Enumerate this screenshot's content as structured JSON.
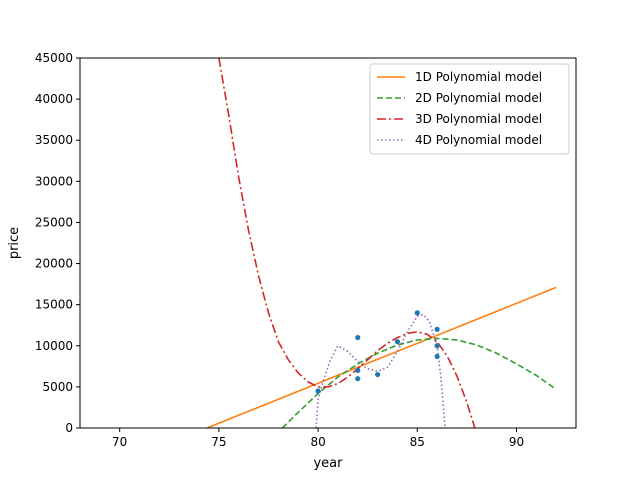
{
  "chart_data": {
    "type": "line",
    "title": "",
    "xlabel": "year",
    "ylabel": "price",
    "xlim": [
      68,
      93
    ],
    "ylim": [
      0,
      45000
    ],
    "x_ticks": [
      70,
      75,
      80,
      85,
      90
    ],
    "y_ticks": [
      0,
      5000,
      10000,
      15000,
      20000,
      25000,
      30000,
      35000,
      40000,
      45000
    ],
    "grid": false,
    "legend_position": "top-right",
    "scatter": {
      "color": "#1f77b4",
      "points": [
        [
          80,
          4500
        ],
        [
          82,
          11000
        ],
        [
          82,
          7000
        ],
        [
          82,
          6000
        ],
        [
          83,
          6500
        ],
        [
          84,
          10500
        ],
        [
          85,
          14000
        ],
        [
          86,
          12000
        ],
        [
          86,
          10000
        ],
        [
          86,
          8700
        ]
      ]
    },
    "series": [
      {
        "name": "1D Polynomial model",
        "color": "#ff7f0e",
        "dash": "solid",
        "points": [
          [
            74.4,
            0
          ],
          [
            92,
            17100
          ]
        ]
      },
      {
        "name": "2D Polynomial model",
        "color": "#2ca02c",
        "dash": "dashed",
        "points": [
          [
            78.2,
            0
          ],
          [
            79,
            1900
          ],
          [
            80,
            4200
          ],
          [
            81,
            6200
          ],
          [
            82,
            7800
          ],
          [
            83,
            9100
          ],
          [
            84,
            10100
          ],
          [
            85,
            10700
          ],
          [
            86,
            10900
          ],
          [
            87,
            10700
          ],
          [
            88,
            10100
          ],
          [
            89,
            9100
          ],
          [
            90,
            7800
          ],
          [
            91,
            6400
          ],
          [
            92,
            4700
          ]
        ]
      },
      {
        "name": "3D Polynomial model",
        "color": "#d62728",
        "dash": "dashdot",
        "points": [
          [
            75,
            45000
          ],
          [
            75.5,
            38000
          ],
          [
            76,
            30500
          ],
          [
            76.5,
            24000
          ],
          [
            77,
            18500
          ],
          [
            77.5,
            14000
          ],
          [
            78,
            10500
          ],
          [
            78.5,
            8300
          ],
          [
            79,
            6700
          ],
          [
            79.5,
            5600
          ],
          [
            80,
            5000
          ],
          [
            80.5,
            5000
          ],
          [
            81,
            5400
          ],
          [
            81.5,
            6200
          ],
          [
            82,
            7200
          ],
          [
            82.5,
            8300
          ],
          [
            83,
            9400
          ],
          [
            83.5,
            10300
          ],
          [
            84,
            11000
          ],
          [
            84.5,
            11500
          ],
          [
            85,
            11700
          ],
          [
            85.5,
            11400
          ],
          [
            86,
            10500
          ],
          [
            86.5,
            8800
          ],
          [
            87,
            6300
          ],
          [
            87.5,
            3100
          ],
          [
            87.9,
            0
          ]
        ]
      },
      {
        "name": "4D Polynomial model",
        "color": "#9467bd",
        "dash": "dotted",
        "points": [
          [
            79.9,
            0
          ],
          [
            80,
            3500
          ],
          [
            80.3,
            6000
          ],
          [
            80.6,
            8200
          ],
          [
            81,
            10000
          ],
          [
            81.5,
            9300
          ],
          [
            82,
            8100
          ],
          [
            82.5,
            7200
          ],
          [
            83,
            6900
          ],
          [
            83.5,
            7400
          ],
          [
            84,
            9300
          ],
          [
            84.5,
            11700
          ],
          [
            85,
            13600
          ],
          [
            85.3,
            13800
          ],
          [
            85.6,
            13000
          ],
          [
            86,
            10000
          ],
          [
            86.2,
            6000
          ],
          [
            86.4,
            0
          ]
        ]
      }
    ]
  }
}
